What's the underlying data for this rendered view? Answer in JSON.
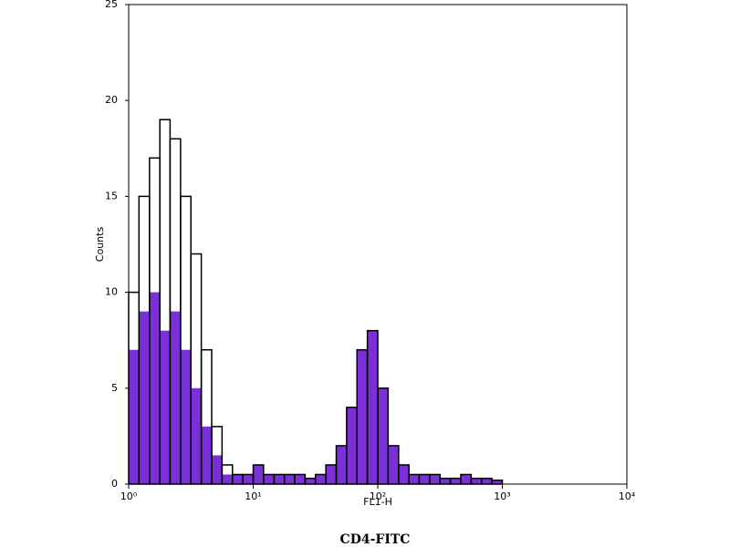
{
  "chart_data": {
    "type": "histogram",
    "xlabel": "FL1-H",
    "ylabel": "Counts",
    "footer": "CD4-FITC",
    "xscale": "log",
    "xlim": [
      1,
      10000
    ],
    "xticks": [
      {
        "value": 1,
        "label": "10⁰"
      },
      {
        "value": 10,
        "label": "10¹"
      },
      {
        "value": 100,
        "label": "10²"
      },
      {
        "value": 1000,
        "label": "10³"
      },
      {
        "value": 10000,
        "label": "10⁴"
      }
    ],
    "ylim": [
      0,
      25
    ],
    "yticks": [
      0,
      5,
      10,
      15,
      20,
      25
    ],
    "bins": [
      1,
      1.21,
      1.47,
      1.78,
      2.15,
      2.61,
      3.16,
      3.83,
      4.64,
      5.62,
      6.81,
      8.25,
      10,
      12.1,
      14.7,
      17.8,
      21.5,
      26.1,
      31.6,
      38.3,
      46.4,
      56.2,
      68.1,
      82.5,
      100,
      121,
      147,
      178,
      215,
      261,
      316,
      383,
      464,
      562,
      681,
      825,
      1000
    ],
    "series": [
      {
        "color": "#7b2fd6",
        "filled": true,
        "values": [
          7,
          9,
          10,
          8,
          9,
          7,
          5,
          3,
          1.5,
          0.5,
          0.5,
          0.5,
          1,
          0.5,
          0.5,
          0.5,
          0.5,
          0.3,
          0.5,
          1,
          2,
          4,
          7,
          8,
          5,
          2,
          1,
          0.5,
          0.5,
          0.5,
          0.3,
          0.3,
          0.5,
          0.3,
          0.3,
          0.2
        ]
      },
      {
        "color": "#000000",
        "filled": false,
        "values": [
          10,
          15,
          17,
          19,
          18,
          15,
          12,
          7,
          3,
          1,
          0.5,
          0.5,
          1,
          0.5,
          0.5,
          0.5,
          0.5,
          0.3,
          0.5,
          1,
          2,
          4,
          7,
          8,
          5,
          2,
          1,
          0.5,
          0.5,
          0.5,
          0.3,
          0.3,
          0.5,
          0.3,
          0.3,
          0.2
        ]
      }
    ]
  }
}
